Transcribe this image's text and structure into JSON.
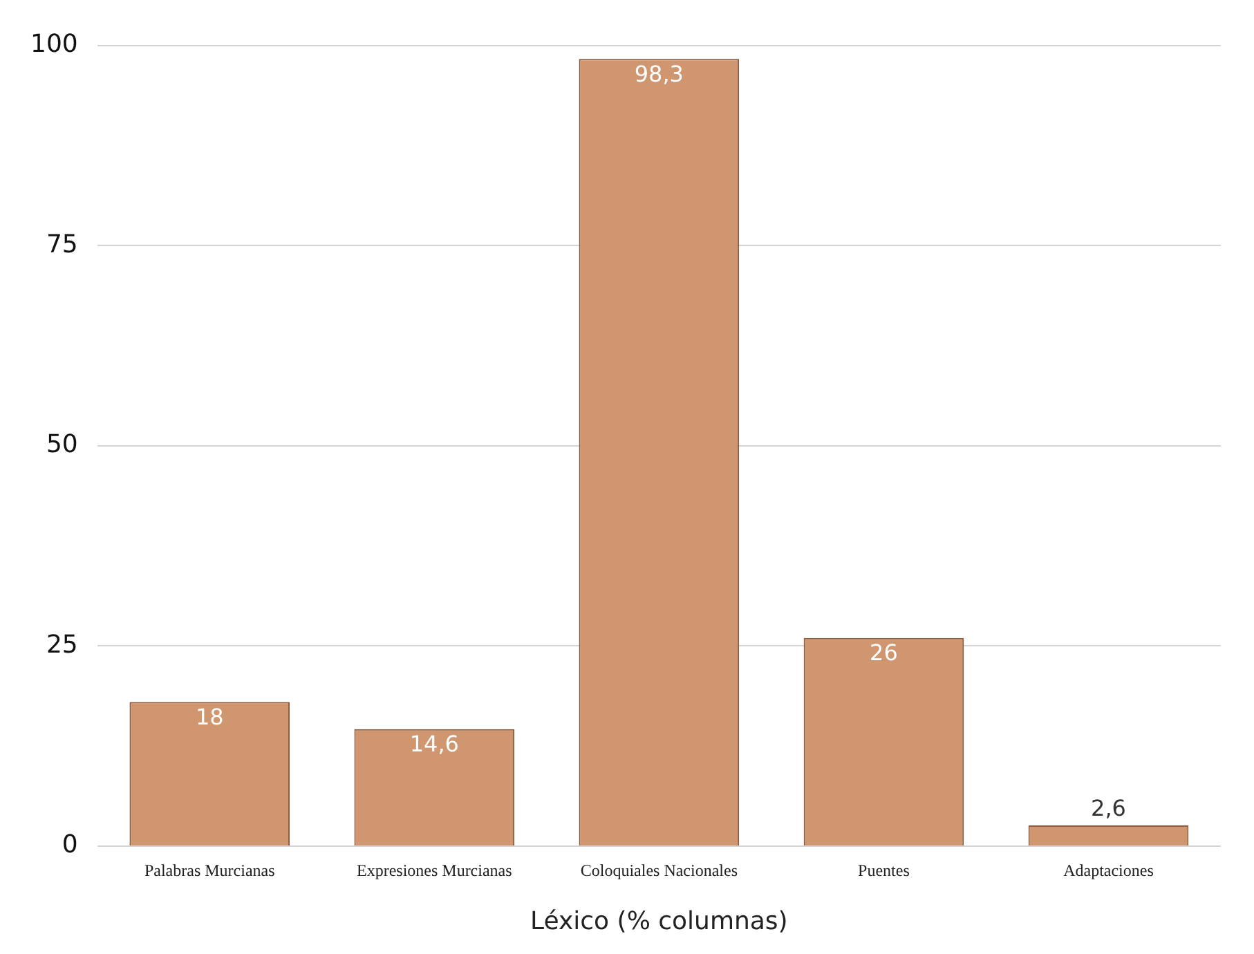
{
  "chart_data": {
    "type": "bar",
    "xlabel": "Léxico (% columnas)",
    "categories": [
      "Palabras Murcianas",
      "Expresiones Murcianas",
      "Coloquiales Nacionales",
      "Puentes",
      "Adaptaciones"
    ],
    "values": [
      18,
      14.6,
      98.3,
      26,
      2.6
    ],
    "value_labels": [
      "18",
      "14,6",
      "98,3",
      "26",
      "2,6"
    ],
    "color": "#cf9670",
    "ylim": [
      0,
      100
    ],
    "yticks": [
      0,
      25,
      50,
      75,
      100
    ],
    "grid": "y",
    "legend": false
  }
}
